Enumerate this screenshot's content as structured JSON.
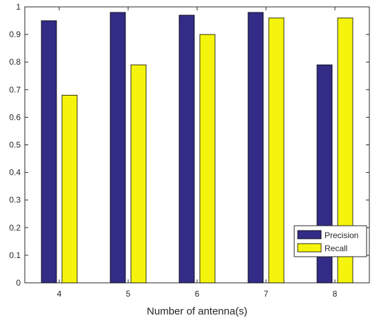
{
  "chart_data": {
    "type": "bar",
    "categories": [
      "4",
      "5",
      "6",
      "7",
      "8"
    ],
    "series": [
      {
        "name": "Precision",
        "values": [
          0.95,
          0.98,
          0.97,
          0.98,
          0.79
        ],
        "color": "#332c86"
      },
      {
        "name": "Recall",
        "values": [
          0.68,
          0.79,
          0.9,
          0.96,
          0.96
        ],
        "color": "#f4f40c"
      }
    ],
    "title": "",
    "xlabel": "Number of antenna(s)",
    "ylabel": "",
    "ylim": [
      0,
      1
    ],
    "yticks": [
      "0",
      "0.1",
      "0.2",
      "0.3",
      "0.4",
      "0.5",
      "0.6",
      "0.7",
      "0.8",
      "0.9",
      "1"
    ],
    "grid": false,
    "legend_position": "bottom-right"
  }
}
